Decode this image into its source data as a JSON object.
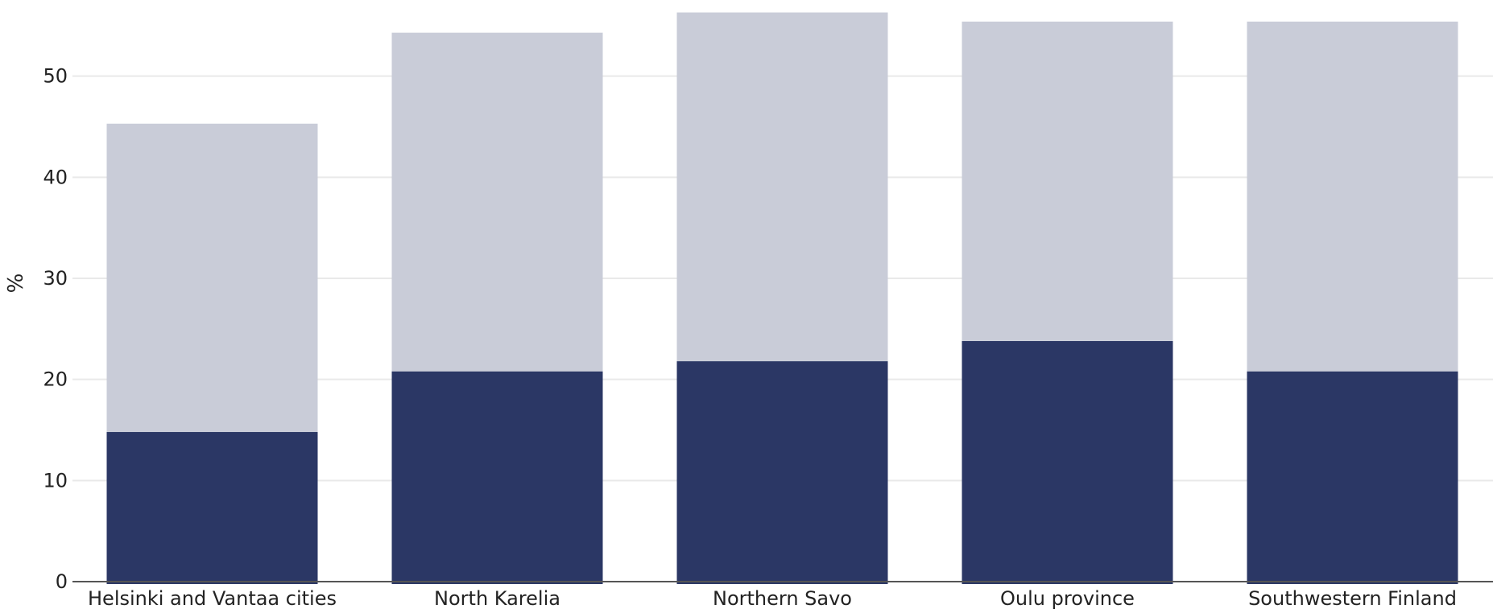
{
  "chart_data": {
    "type": "bar",
    "stacked": true,
    "categories": [
      "Helsinki and Vantaa cities",
      "North Karelia",
      "Northern Savo",
      "Oulu province",
      "Southwestern Finland"
    ],
    "series": [
      {
        "values": [
          14.8,
          20.8,
          21.8,
          23.8,
          20.8
        ],
        "color": "#2b3765"
      },
      {
        "values": [
          30.5,
          33.5,
          34.5,
          31.6,
          34.6
        ],
        "color": "#c9ccd8"
      }
    ],
    "ylabel": "%",
    "ylim": [
      0,
      56.5
    ],
    "yticks": [
      0,
      10,
      20,
      30,
      40,
      50
    ],
    "grid": true
  }
}
